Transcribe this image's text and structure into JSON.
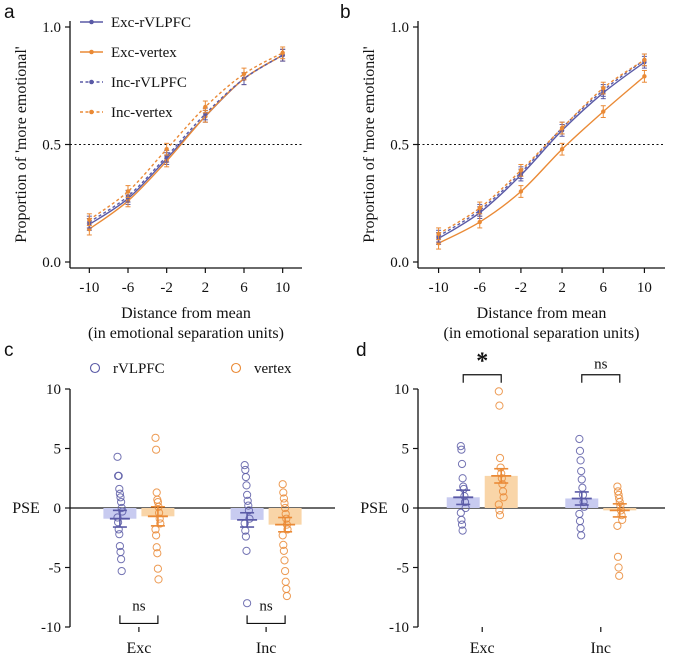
{
  "colors": {
    "blue": "#5a5aa6",
    "orange": "#ea8a36",
    "blueFill": "#c8cbf0",
    "orangeFill": "#f9d5a8"
  },
  "legends": {
    "top": [
      {
        "label": "Exc-rVLPFC",
        "color": "#5a5aa6",
        "dash": false
      },
      {
        "label": "Exc-vertex",
        "color": "#ea8a36",
        "dash": false
      },
      {
        "label": "Inc-rVLPFC",
        "color": "#5a5aa6",
        "dash": true
      },
      {
        "label": "Inc-vertex",
        "color": "#ea8a36",
        "dash": true
      }
    ],
    "bottom": [
      {
        "label": "rVLPFC",
        "color": "#5a5aa6"
      },
      {
        "label": "vertex",
        "color": "#ea8a36"
      }
    ]
  },
  "chart_data": [
    {
      "panel": "a",
      "type": "line",
      "xlabel": "Distance from mean",
      "xlabel2": "(in emotional separation units)",
      "ylabel": "Proportion of 'more emotional'",
      "x": [
        -10,
        -6,
        -2,
        2,
        6,
        10
      ],
      "xticks": [
        "-10",
        "-6",
        "-2",
        "2",
        "6",
        "10"
      ],
      "ylim": [
        0,
        1
      ],
      "yticks": [
        "0.0",
        "0.5",
        "1.0"
      ],
      "refline": 0.5,
      "series": [
        {
          "name": "Exc-rVLPFC",
          "values": [
            0.16,
            0.27,
            0.44,
            0.62,
            0.78,
            0.88
          ],
          "err": 0.025
        },
        {
          "name": "Exc-vertex",
          "values": [
            0.14,
            0.26,
            0.43,
            0.62,
            0.78,
            0.88
          ],
          "err": 0.025
        },
        {
          "name": "Inc-rVLPFC",
          "values": [
            0.17,
            0.28,
            0.45,
            0.63,
            0.78,
            0.88
          ],
          "err": 0.025
        },
        {
          "name": "Inc-vertex",
          "values": [
            0.18,
            0.3,
            0.48,
            0.66,
            0.8,
            0.89
          ],
          "err": 0.025
        }
      ]
    },
    {
      "panel": "b",
      "type": "line",
      "xlabel": "Distance from mean",
      "xlabel2": "(in emotional separation units)",
      "ylabel": "Proportion of 'more emotional'",
      "x": [
        -10,
        -6,
        -2,
        2,
        6,
        10
      ],
      "xticks": [
        "-10",
        "-6",
        "-2",
        "2",
        "6",
        "10"
      ],
      "ylim": [
        0,
        1
      ],
      "yticks": [
        "0.0",
        "0.5",
        "1.0"
      ],
      "refline": 0.5,
      "series": [
        {
          "name": "Exc-rVLPFC",
          "values": [
            0.1,
            0.21,
            0.37,
            0.56,
            0.72,
            0.85
          ],
          "err": 0.025
        },
        {
          "name": "Exc-vertex",
          "values": [
            0.08,
            0.17,
            0.3,
            0.48,
            0.64,
            0.79
          ],
          "err": 0.025
        },
        {
          "name": "Inc-rVLPFC",
          "values": [
            0.11,
            0.22,
            0.38,
            0.57,
            0.73,
            0.86
          ],
          "err": 0.025
        },
        {
          "name": "Inc-vertex",
          "values": [
            0.12,
            0.23,
            0.39,
            0.57,
            0.74,
            0.86
          ],
          "err": 0.025
        }
      ]
    },
    {
      "panel": "c",
      "type": "bar",
      "ylabel": "PSE",
      "ylim": [
        -10,
        10
      ],
      "yticks": [
        "-10",
        "-5",
        "0",
        "5",
        "10"
      ],
      "categories": [
        "Exc",
        "Inc"
      ],
      "series": [
        {
          "name": "rVLPFC",
          "values": [
            -0.9,
            -1.0
          ],
          "err": [
            0.7,
            0.6
          ],
          "points": [
            [
              4.3,
              2.7,
              2.7,
              1.6,
              1.2,
              0.9,
              0.5,
              0.0,
              -0.3,
              -0.8,
              -1.2,
              -1.8,
              -2.2,
              -3.2,
              -3.7,
              -4.3,
              -5.3
            ],
            [
              3.6,
              3.2,
              2.6,
              1.9,
              1.1,
              0.6,
              0.2,
              -0.2,
              -0.9,
              -1.3,
              -1.9,
              -2.4,
              -3.6,
              -8.0
            ]
          ]
        },
        {
          "name": "vertex",
          "values": [
            -0.7,
            -1.4
          ],
          "err": [
            0.8,
            0.6
          ],
          "points": [
            [
              5.9,
              4.9,
              1.3,
              0.7,
              0.5,
              0.1,
              -0.4,
              -0.9,
              -1.3,
              -1.8,
              -2.3,
              -3.3,
              -3.8,
              -5.1,
              -6.0
            ],
            [
              2.0,
              1.3,
              0.8,
              0.4,
              0.0,
              -0.5,
              -0.9,
              -1.4,
              -1.8,
              -2.3,
              -3.1,
              -3.6,
              -4.4,
              -5.3,
              -6.2,
              -6.8,
              -7.4
            ]
          ]
        }
      ],
      "sig": [
        "ns",
        "ns"
      ],
      "sigPos": "bottom"
    },
    {
      "panel": "d",
      "type": "bar",
      "ylabel": "PSE",
      "ylim": [
        -10,
        10
      ],
      "yticks": [
        "-10",
        "-5",
        "0",
        "5",
        "10"
      ],
      "categories": [
        "Exc",
        "Inc"
      ],
      "series": [
        {
          "name": "rVLPFC",
          "values": [
            0.9,
            0.8
          ],
          "err": [
            0.6,
            0.55
          ],
          "points": [
            [
              5.2,
              4.9,
              3.7,
              2.5,
              1.8,
              1.6,
              1.0,
              0.5,
              0.0,
              -0.4,
              -1.0,
              -1.4,
              -1.9
            ],
            [
              5.8,
              4.8,
              4.0,
              3.1,
              2.4,
              1.7,
              1.1,
              0.5,
              0.1,
              -0.5,
              -1.1,
              -1.7,
              -2.3
            ]
          ]
        },
        {
          "name": "vertex",
          "values": [
            2.7,
            -0.2
          ],
          "err": [
            0.6,
            0.55
          ],
          "points": [
            [
              9.8,
              8.6,
              4.2,
              3.4,
              2.9,
              2.5,
              2.0,
              1.4,
              0.9,
              0.3,
              -0.2,
              -0.6
            ],
            [
              1.8,
              1.4,
              1.1,
              0.8,
              0.5,
              0.2,
              -0.2,
              -0.6,
              -1.0,
              -1.5,
              -4.1,
              -5.0,
              -5.7
            ]
          ]
        }
      ],
      "sig": [
        "*",
        "ns"
      ],
      "sigPos": "top"
    }
  ]
}
